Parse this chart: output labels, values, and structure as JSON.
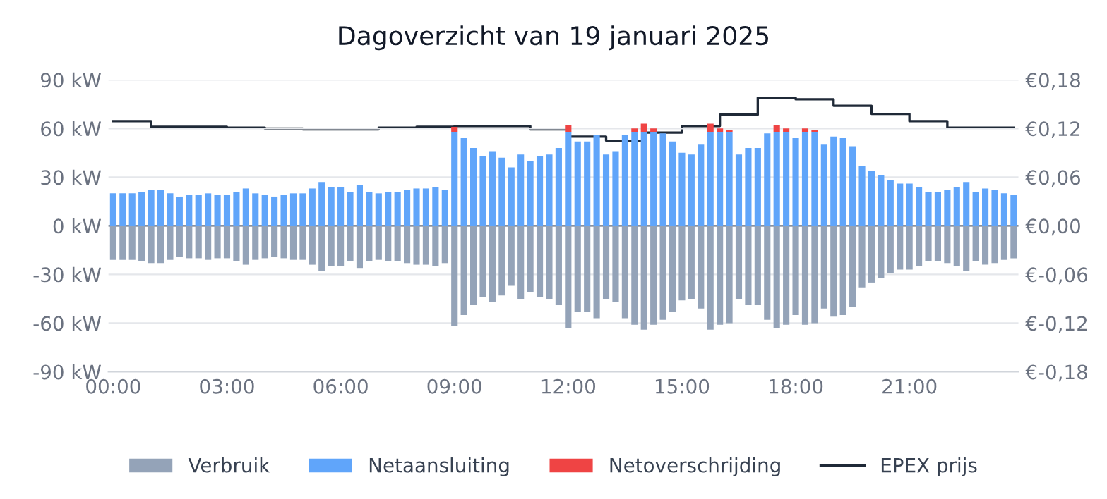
{
  "chart_data": {
    "type": "bar",
    "title": "Dagoverzicht van 19 januari 2025",
    "stacked": true,
    "x": [
      0,
      0.25,
      0.5,
      0.75,
      1,
      1.25,
      1.5,
      1.75,
      2,
      2.25,
      2.5,
      2.75,
      3,
      3.25,
      3.5,
      3.75,
      4,
      4.25,
      4.5,
      4.75,
      5,
      5.25,
      5.5,
      5.75,
      6,
      6.25,
      6.5,
      6.75,
      7,
      7.25,
      7.5,
      7.75,
      8,
      8.25,
      8.5,
      8.75,
      9,
      9.25,
      9.5,
      9.75,
      10,
      10.25,
      10.5,
      10.75,
      11,
      11.25,
      11.5,
      11.75,
      12,
      12.25,
      12.5,
      12.75,
      13,
      13.25,
      13.5,
      13.75,
      14,
      14.25,
      14.5,
      14.75,
      15,
      15.25,
      15.5,
      15.75,
      16,
      16.25,
      16.5,
      16.75,
      17,
      17.25,
      17.5,
      17.75,
      18,
      18.25,
      18.5,
      18.75,
      19,
      19.25,
      19.5,
      19.75,
      20,
      20.25,
      20.5,
      20.75,
      21,
      21.25,
      21.5,
      21.75,
      22,
      22.25,
      22.5,
      22.75,
      23,
      23.25,
      23.5,
      23.75
    ],
    "xlim": [
      -0.125,
      23.875
    ],
    "xticks": [
      {
        "value": 0,
        "label": "00:00"
      },
      {
        "value": 3,
        "label": "03:00"
      },
      {
        "value": 6,
        "label": "06:00"
      },
      {
        "value": 9,
        "label": "09:00"
      },
      {
        "value": 12,
        "label": "12:00"
      },
      {
        "value": 15,
        "label": "15:00"
      },
      {
        "value": 18,
        "label": "18:00"
      },
      {
        "value": 21,
        "label": "21:00"
      }
    ],
    "ylim": [
      -90,
      90
    ],
    "yticks": [
      {
        "value": -90,
        "label": "-90 kW"
      },
      {
        "value": -60,
        "label": "-60 kW"
      },
      {
        "value": -30,
        "label": "-30 kW"
      },
      {
        "value": 0,
        "label": "0 kW"
      },
      {
        "value": 30,
        "label": "30 kW"
      },
      {
        "value": 60,
        "label": "60 kW"
      },
      {
        "value": 90,
        "label": "90 kW"
      }
    ],
    "y2lim": [
      -0.18,
      0.18
    ],
    "y2ticks": [
      {
        "value": -0.18,
        "label": "€-0,18"
      },
      {
        "value": -0.12,
        "label": "€-0,12"
      },
      {
        "value": -0.06,
        "label": "€-0,06"
      },
      {
        "value": 0,
        "label": "€0,00"
      },
      {
        "value": 0.06,
        "label": "€0,06"
      },
      {
        "value": 0.12,
        "label": "€0,12"
      },
      {
        "value": 0.18,
        "label": "€0,18"
      }
    ],
    "grid": "y",
    "legend": "bottom",
    "series": [
      {
        "name": "Verbruik",
        "color": "#94a3b8",
        "values": [
          -21,
          -21,
          -21,
          -22,
          -23,
          -23,
          -21,
          -19,
          -20,
          -20,
          -21,
          -20,
          -20,
          -22,
          -24,
          -21,
          -20,
          -19,
          -20,
          -21,
          -21,
          -24,
          -28,
          -25,
          -25,
          -22,
          -26,
          -22,
          -21,
          -22,
          -22,
          -23,
          -24,
          -24,
          -25,
          -23,
          -62,
          -55,
          -49,
          -44,
          -47,
          -43,
          -37,
          -45,
          -41,
          -44,
          -45,
          -49,
          -63,
          -53,
          -53,
          -57,
          -45,
          -47,
          -57,
          -61,
          -64,
          -61,
          -58,
          -53,
          -46,
          -45,
          -51,
          -64,
          -61,
          -60,
          -45,
          -49,
          -49,
          -58,
          -63,
          -61,
          -55,
          -61,
          -60,
          -51,
          -56,
          -55,
          -50,
          -38,
          -35,
          -32,
          -29,
          -27,
          -27,
          -25,
          -22,
          -22,
          -23,
          -25,
          -28,
          -22,
          -24,
          -23,
          -21,
          -20
        ]
      },
      {
        "name": "Netaansluiting",
        "color": "#60a5fa",
        "values": [
          20,
          20,
          20,
          21,
          22,
          22,
          20,
          18,
          19,
          19,
          20,
          19,
          19,
          21,
          23,
          20,
          19,
          18,
          19,
          20,
          20,
          23,
          27,
          24,
          24,
          21,
          25,
          21,
          20,
          21,
          21,
          22,
          23,
          23,
          24,
          22,
          58,
          54,
          48,
          43,
          46,
          42,
          36,
          44,
          40,
          43,
          44,
          48,
          58,
          52,
          52,
          56,
          44,
          46,
          56,
          58,
          58,
          58,
          57,
          52,
          45,
          44,
          50,
          58,
          58,
          58,
          44,
          48,
          48,
          57,
          58,
          58,
          54,
          58,
          58,
          50,
          55,
          54,
          49,
          37,
          34,
          31,
          28,
          26,
          26,
          24,
          21,
          21,
          22,
          24,
          27,
          21,
          23,
          22,
          20,
          19
        ]
      },
      {
        "name": "Netoverschrijding",
        "color": "#ef4444",
        "values": [
          0,
          0,
          0,
          0,
          0,
          0,
          0,
          0,
          0,
          0,
          0,
          0,
          0,
          0,
          0,
          0,
          0,
          0,
          0,
          0,
          0,
          0,
          0,
          0,
          0,
          0,
          0,
          0,
          0,
          0,
          0,
          0,
          0,
          0,
          0,
          0,
          3,
          0,
          0,
          0,
          0,
          0,
          0,
          0,
          0,
          0,
          0,
          0,
          4,
          0,
          0,
          0,
          0,
          0,
          0,
          2,
          5,
          2,
          0,
          0,
          0,
          0,
          0,
          5,
          2,
          1,
          0,
          0,
          0,
          0,
          4,
          2,
          0,
          2,
          1,
          0,
          0,
          0,
          0,
          0,
          0,
          0,
          0,
          0,
          0,
          0,
          0,
          0,
          0,
          0,
          0,
          0,
          0,
          0,
          0,
          0
        ]
      },
      {
        "name": "EPEX prijs",
        "type": "step",
        "axis": "y2",
        "color": "#1f2937",
        "x": [
          0,
          1,
          2,
          3,
          4,
          5,
          6,
          7,
          8,
          9,
          10,
          11,
          12,
          13,
          14,
          15,
          16,
          17,
          18,
          19,
          20,
          21,
          22,
          23,
          23.75
        ],
        "values": [
          0.129,
          0.122,
          0.122,
          0.121,
          0.12,
          0.119,
          0.119,
          0.121,
          0.122,
          0.123,
          0.123,
          0.119,
          0.11,
          0.105,
          0.115,
          0.123,
          0.137,
          0.158,
          0.156,
          0.148,
          0.138,
          0.129,
          0.121,
          0.121,
          0.121
        ]
      }
    ]
  }
}
